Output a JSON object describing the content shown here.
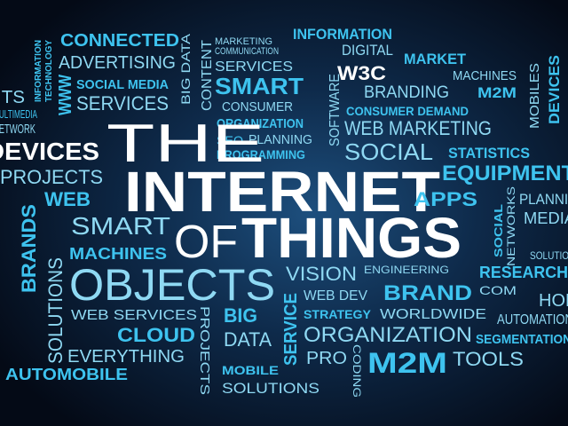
{
  "words": [
    "CONNECTED",
    "ADVERTISING",
    "SOCIAL MEDIA",
    "SERVICES",
    "MARKETING",
    "COMMUNICATION",
    "SERVICES",
    "INFORMATION",
    "DIGITAL",
    "W3C",
    "MARKET",
    "MACHINES",
    "BRANDING",
    "M2M",
    "SMART",
    "CONSUMER DEMAND",
    "CONSUMER",
    "ORGANIZATION",
    "SEO",
    "PLANNING",
    "PROGRAMMING",
    "WEB MARKETING",
    "SOCIAL",
    "STATISTICS",
    "ITS",
    "MULTIMEDIA",
    "NETWORK",
    "DEVICES",
    "PROJECTS",
    "WEB",
    "SMART",
    "MACHINES",
    "THE",
    "INTERNET",
    "OF",
    "THINGS",
    "EQUIPMENT",
    "APPS",
    "PLANNING",
    "MEDIA",
    "SOLUTIONS",
    "RESEARCH",
    "HOME",
    "COM",
    "AUTOMATION",
    "SEGMENTATION",
    "OBJECTS",
    "VISION",
    "ENGINEERING",
    "WEB DEV",
    "BRAND",
    "STRATEGY",
    "WORLDWIDE",
    "WEB SERVICES",
    "CLOUD",
    "BIG",
    "DATA",
    "ORGANIZATION",
    "TOOLS",
    "PRO",
    "M2M",
    "EVERYTHING",
    "AUTOMOBILE",
    "MOBILE",
    "SOLUTIONS",
    "INFORMATION",
    "TECHNOLOGY",
    "WWW",
    "BIG DATA",
    "CONTENT",
    "SOFTWARE",
    "MOBILES",
    "DEVICES",
    "BRANDS",
    "SOLUTIONS",
    "SOCIAL",
    "NETWORKS",
    "PROJECTS",
    "SERVICE",
    "CODING"
  ]
}
